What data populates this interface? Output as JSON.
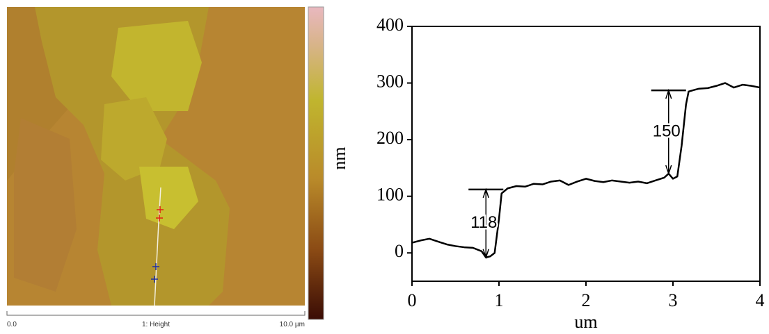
{
  "afm_image": {
    "colorbar_label": "nm",
    "scale_start": "0.0",
    "channel": "1: Height",
    "scale_end": "10.0 µm"
  },
  "chart_data": {
    "type": "line",
    "x_label": "um",
    "color": "#000000",
    "x": [
      0,
      0.1,
      0.2,
      0.3,
      0.4,
      0.5,
      0.6,
      0.7,
      0.8,
      0.85,
      0.9,
      0.95,
      1.0,
      1.03,
      1.1,
      1.2,
      1.3,
      1.4,
      1.5,
      1.6,
      1.7,
      1.8,
      1.9,
      2.0,
      2.1,
      2.2,
      2.3,
      2.4,
      2.5,
      2.6,
      2.7,
      2.8,
      2.9,
      2.95,
      3.0,
      3.05,
      3.1,
      3.15,
      3.18,
      3.25,
      3.3,
      3.4,
      3.5,
      3.6,
      3.7,
      3.8,
      3.9,
      4.0
    ],
    "values": [
      18,
      22,
      25,
      20,
      15,
      12,
      10,
      9,
      3,
      -8,
      -6,
      0,
      60,
      105,
      114,
      118,
      117,
      122,
      121,
      126,
      128,
      120,
      126,
      131,
      127,
      125,
      128,
      126,
      124,
      126,
      123,
      128,
      133,
      140,
      131,
      135,
      190,
      262,
      285,
      288,
      290,
      291,
      295,
      300,
      292,
      297,
      295,
      292
    ],
    "xlim": [
      0,
      4
    ],
    "ylim": [
      -50,
      400
    ],
    "xticks": [
      0,
      1,
      2,
      3,
      4
    ],
    "yticks": [
      0,
      100,
      200,
      300,
      400
    ],
    "annotations": [
      {
        "text": "118",
        "x": 0.85,
        "y": [
          -8,
          112
        ]
      },
      {
        "text": "150",
        "x": 2.95,
        "y": [
          140,
          287
        ]
      }
    ]
  }
}
